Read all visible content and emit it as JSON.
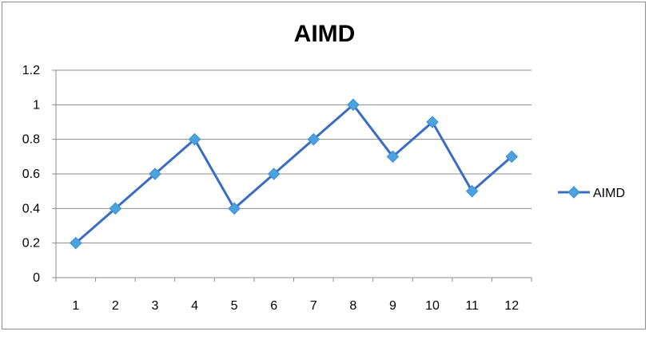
{
  "chart_data": {
    "type": "line",
    "title": "AIMD",
    "xlabel": "",
    "ylabel": "",
    "categories": [
      "1",
      "2",
      "3",
      "4",
      "5",
      "6",
      "7",
      "8",
      "9",
      "10",
      "11",
      "12"
    ],
    "series": [
      {
        "name": "AIMD",
        "values": [
          0.2,
          0.4,
          0.6,
          0.8,
          0.4,
          0.6,
          0.8,
          1.0,
          0.7,
          0.9,
          0.5,
          0.7
        ]
      }
    ],
    "ylim": [
      0,
      1.2
    ],
    "yticks": [
      "0",
      "0.2",
      "0.4",
      "0.6",
      "0.8",
      "1",
      "1.2"
    ],
    "grid": true,
    "legend_position": "right",
    "colors": {
      "line": "#3a6cc4",
      "marker": "#4aa3df",
      "grid": "#8c8c8c",
      "axis": "#8c8c8c"
    }
  }
}
